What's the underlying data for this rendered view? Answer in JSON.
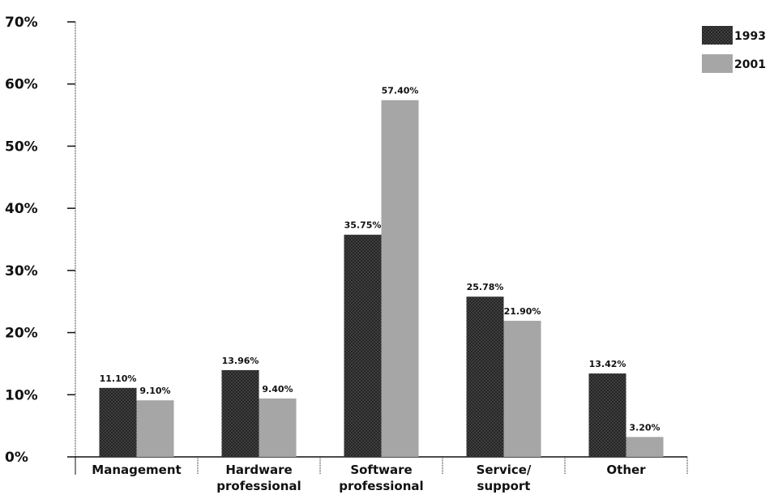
{
  "chart_data": {
    "type": "bar",
    "title": "",
    "xlabel": "",
    "ylabel": "",
    "ylim": [
      0,
      70
    ],
    "y_ticks": [
      "0%",
      "10%",
      "20%",
      "30%",
      "40%",
      "50%",
      "60%",
      "70%"
    ],
    "categories": [
      [
        "Management"
      ],
      [
        "Hardware",
        "professional"
      ],
      [
        "Software",
        "professional"
      ],
      [
        "Service/",
        "support"
      ],
      [
        "Other"
      ]
    ],
    "series": [
      {
        "name": "1993",
        "color": "#3a3a3a",
        "pattern": "crosshatch",
        "values": [
          11.1,
          13.96,
          35.75,
          25.78,
          13.42
        ],
        "labels": [
          "11.10%",
          "13.96%",
          "35.75%",
          "25.78%",
          "13.42%"
        ]
      },
      {
        "name": "2001",
        "color": "#a6a6a6",
        "pattern": "solid",
        "values": [
          9.1,
          9.4,
          57.4,
          21.9,
          3.2
        ],
        "labels": [
          "9.10%",
          "9.40%",
          "57.40%",
          "21.90%",
          "3.20%"
        ]
      }
    ],
    "legend_position": "top-right",
    "grid": false
  }
}
